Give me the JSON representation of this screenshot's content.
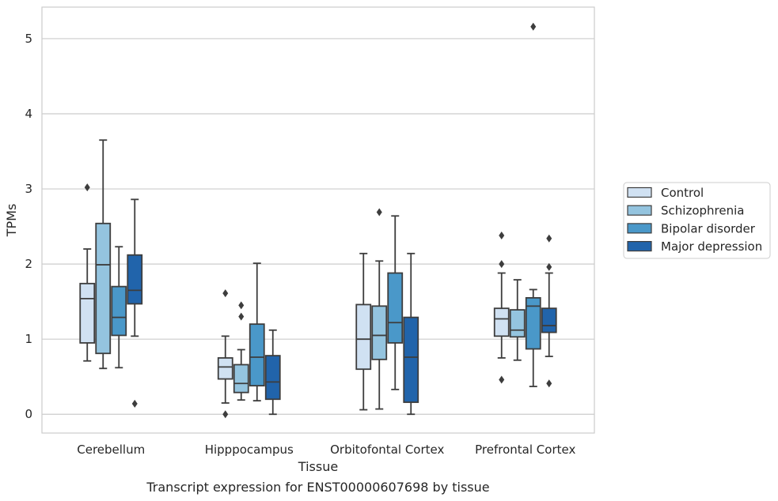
{
  "caption": "Transcript expression for ENST00000607698 by tissue",
  "chart_data": {
    "type": "box",
    "xlabel": "Tissue",
    "ylabel": "TPMs",
    "ylim": [
      -0.25,
      5.42
    ],
    "yticks": [
      0,
      1,
      2,
      3,
      4,
      5
    ],
    "grid": true,
    "legend_position": "right",
    "categories": [
      "Cerebellum",
      "Hipppocampus",
      "Orbitofontal Cortex",
      "Prefrontal Cortex"
    ],
    "series": [
      {
        "name": "Control",
        "color": "#d0e1f2",
        "boxes": [
          {
            "whislo": 0.71,
            "q1": 0.95,
            "med": 1.54,
            "q3": 1.74,
            "whishi": 2.2,
            "fliers": [
              3.02
            ]
          },
          {
            "whislo": 0.15,
            "q1": 0.47,
            "med": 0.63,
            "q3": 0.75,
            "whishi": 1.04,
            "fliers": [
              1.61,
              0.0
            ]
          },
          {
            "whislo": 0.06,
            "q1": 0.6,
            "med": 1.0,
            "q3": 1.46,
            "whishi": 2.14,
            "fliers": []
          },
          {
            "whislo": 0.75,
            "q1": 1.04,
            "med": 1.27,
            "q3": 1.41,
            "whishi": 1.88,
            "fliers": [
              2.38,
              2.0,
              0.46
            ]
          }
        ]
      },
      {
        "name": "Schizophrenia",
        "color": "#94c4df",
        "boxes": [
          {
            "whislo": 0.61,
            "q1": 0.81,
            "med": 1.99,
            "q3": 2.54,
            "whishi": 3.65,
            "fliers": []
          },
          {
            "whislo": 0.19,
            "q1": 0.29,
            "med": 0.41,
            "q3": 0.66,
            "whishi": 0.86,
            "fliers": [
              1.45,
              1.3
            ]
          },
          {
            "whislo": 0.07,
            "q1": 0.73,
            "med": 1.05,
            "q3": 1.44,
            "whishi": 2.04,
            "fliers": [
              2.69
            ]
          },
          {
            "whislo": 0.72,
            "q1": 1.03,
            "med": 1.12,
            "q3": 1.39,
            "whishi": 1.79,
            "fliers": []
          }
        ]
      },
      {
        "name": "Bipolar disorder",
        "color": "#4a98c9",
        "boxes": [
          {
            "whislo": 0.62,
            "q1": 1.05,
            "med": 1.29,
            "q3": 1.7,
            "whishi": 2.23,
            "fliers": []
          },
          {
            "whislo": 0.18,
            "q1": 0.38,
            "med": 0.76,
            "q3": 1.2,
            "whishi": 2.01,
            "fliers": []
          },
          {
            "whislo": 0.33,
            "q1": 0.95,
            "med": 1.22,
            "q3": 1.88,
            "whishi": 2.64,
            "fliers": []
          },
          {
            "whislo": 0.37,
            "q1": 0.87,
            "med": 1.44,
            "q3": 1.55,
            "whishi": 1.66,
            "fliers": [
              5.16
            ]
          }
        ]
      },
      {
        "name": "Major depression",
        "color": "#2164ab",
        "boxes": [
          {
            "whislo": 1.04,
            "q1": 1.47,
            "med": 1.65,
            "q3": 2.12,
            "whishi": 2.86,
            "fliers": [
              0.14
            ]
          },
          {
            "whislo": 0.0,
            "q1": 0.2,
            "med": 0.43,
            "q3": 0.78,
            "whishi": 1.12,
            "fliers": []
          },
          {
            "whislo": 0.0,
            "q1": 0.16,
            "med": 0.76,
            "q3": 1.29,
            "whishi": 2.14,
            "fliers": []
          },
          {
            "whislo": 0.77,
            "q1": 1.09,
            "med": 1.18,
            "q3": 1.41,
            "whishi": 1.88,
            "fliers": [
              2.34,
              1.96,
              0.41
            ]
          }
        ]
      }
    ]
  }
}
